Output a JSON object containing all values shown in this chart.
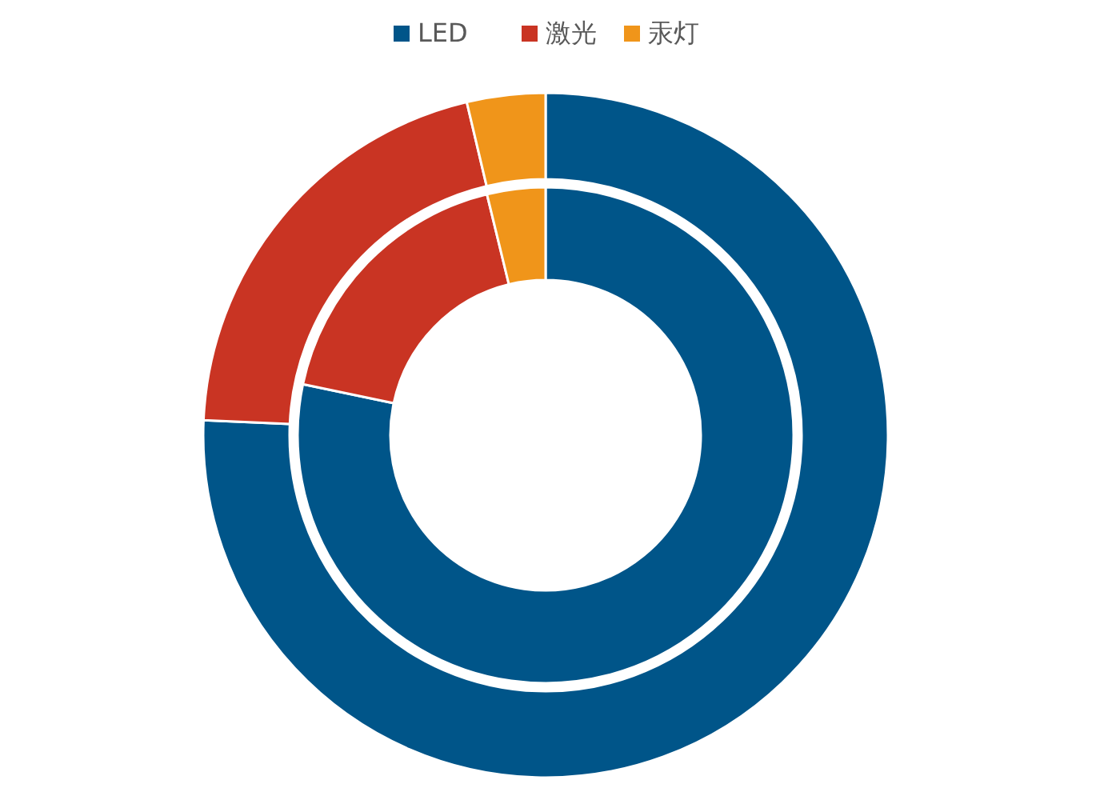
{
  "chart_data": {
    "type": "donut",
    "categories": [
      "LED",
      "激光",
      "汞灯"
    ],
    "colors": [
      "#005589",
      "#c93423",
      "#f0951a"
    ],
    "legend": "top",
    "series": [
      {
        "values": [
          78.3,
          17.9,
          3.8
        ]
      },
      {
        "values": [
          75.7,
          20.6,
          3.7
        ]
      }
    ]
  }
}
